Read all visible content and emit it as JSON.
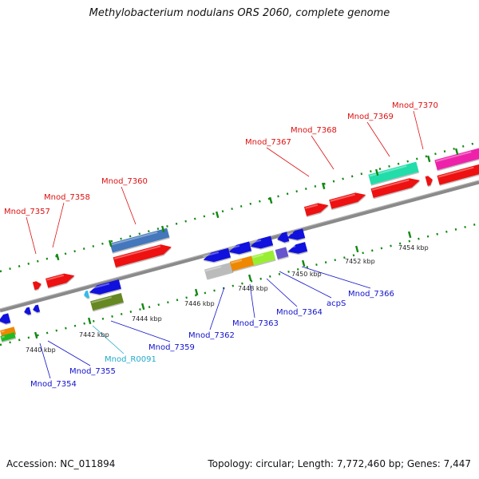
{
  "title": "Methylobacterium nodulans ORS 2060, complete genome",
  "footer": {
    "accession": "Accession: NC_011894",
    "summary": "Topology: circular; Length: 7,772,460 bp; Genes: 7,447"
  },
  "colors": {
    "backbone": "#8a8a8a",
    "tick": "#118811",
    "forward_label": "#dd1111",
    "reverse_label": "#1111cc",
    "rna_label": "#22aacc"
  },
  "scale_labels": [
    "7440 kbp",
    "7442 kbp",
    "7444 kbp",
    "7446 kbp",
    "7448 kbp",
    "7450 kbp",
    "7452 kbp",
    "7454 kbp"
  ],
  "forward_gene_labels": [
    "Mnod_7357",
    "Mnod_7358",
    "Mnod_7360",
    "Mnod_7367",
    "Mnod_7368",
    "Mnod_7369",
    "Mnod_7370"
  ],
  "reverse_gene_labels": [
    "Mnod_7354",
    "Mnod_7355",
    "Mnod_R0091",
    "Mnod_7359",
    "Mnod_7362",
    "Mnod_7363",
    "Mnod_7364",
    "acpS",
    "Mnod_7366"
  ]
}
